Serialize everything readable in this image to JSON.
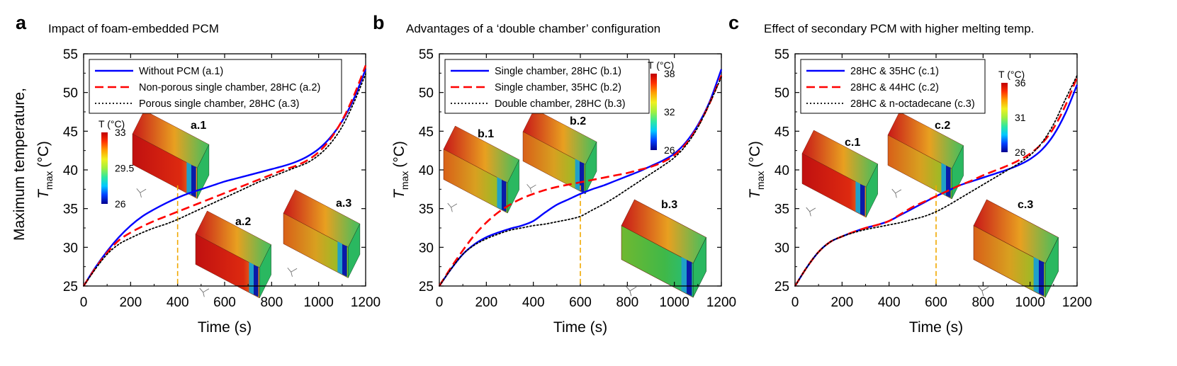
{
  "figure": {
    "ylabel_line1": "Maximum temperature,",
    "ylabel_T": "T",
    "ylabel_sub": "max",
    "ylabel_unit": "(°C)"
  },
  "chart_data": [
    {
      "type": "line",
      "panel_letter": "a",
      "title": "Impact of foam-embedded PCM",
      "xlabel": "Time (s)",
      "ylabel": "T max (°C)",
      "xlim": [
        0,
        1200
      ],
      "ylim": [
        25,
        55
      ],
      "xticks": [
        0,
        200,
        400,
        600,
        800,
        1000,
        1200
      ],
      "yticks": [
        25,
        30,
        35,
        40,
        45,
        50,
        55
      ],
      "grid": false,
      "legend_position": "top-left",
      "marker_x": 400,
      "colorbar": {
        "label": "T (°C)",
        "ticks": [
          "33",
          "29.5",
          "26"
        ],
        "position": "left-middle"
      },
      "insets": [
        "a.1",
        "a.2",
        "a.3"
      ],
      "series": [
        {
          "name": "Without PCM (a.1)",
          "color": "#0000ff",
          "dash": "solid",
          "x": [
            0,
            50,
            100,
            150,
            200,
            250,
            300,
            350,
            400,
            450,
            500,
            550,
            600,
            650,
            700,
            750,
            800,
            850,
            900,
            950,
            1000,
            1050,
            1100,
            1150,
            1200
          ],
          "y": [
            25,
            27.4,
            29.5,
            31.3,
            32.8,
            34.0,
            34.9,
            35.7,
            36.4,
            37.0,
            37.5,
            38.0,
            38.5,
            38.9,
            39.3,
            39.7,
            40.1,
            40.5,
            41.0,
            41.7,
            42.7,
            44.2,
            46.3,
            49.2,
            53.0
          ]
        },
        {
          "name": "Non-porous single chamber, 28HC (a.2)",
          "color": "#ff0000",
          "dash": "long",
          "x": [
            0,
            50,
            100,
            150,
            200,
            250,
            300,
            350,
            400,
            450,
            500,
            550,
            600,
            650,
            700,
            750,
            800,
            850,
            900,
            950,
            1000,
            1050,
            1100,
            1150,
            1200
          ],
          "y": [
            25,
            27.3,
            29.3,
            30.9,
            31.9,
            32.7,
            33.4,
            34.0,
            34.6,
            35.2,
            35.8,
            36.4,
            37.0,
            37.6,
            38.2,
            38.8,
            39.4,
            40.0,
            40.5,
            41.2,
            42.3,
            44.0,
            46.4,
            49.6,
            53.5
          ]
        },
        {
          "name": "Porous single chamber, 28HC (a.3)",
          "color": "#000000",
          "dash": "dotted",
          "x": [
            0,
            50,
            100,
            150,
            200,
            250,
            300,
            350,
            400,
            450,
            500,
            550,
            600,
            650,
            700,
            750,
            800,
            850,
            900,
            950,
            1000,
            1050,
            1100,
            1150,
            1200
          ],
          "y": [
            25,
            27.2,
            29.1,
            30.4,
            31.2,
            31.9,
            32.5,
            33.0,
            33.6,
            34.3,
            35.0,
            35.7,
            36.4,
            37.1,
            37.8,
            38.5,
            39.1,
            39.7,
            40.3,
            40.9,
            41.9,
            43.4,
            45.6,
            48.7,
            52.4
          ]
        }
      ]
    },
    {
      "type": "line",
      "panel_letter": "b",
      "title": "Advantages of a ‘double chamber’ configuration",
      "xlabel": "Time (s)",
      "ylabel": "T max (°C)",
      "xlim": [
        0,
        1200
      ],
      "ylim": [
        25,
        55
      ],
      "xticks": [
        0,
        200,
        400,
        600,
        800,
        1000,
        1200
      ],
      "yticks": [
        25,
        30,
        35,
        40,
        45,
        50,
        55
      ],
      "grid": false,
      "legend_position": "top-left",
      "marker_x": 600,
      "colorbar": {
        "label": "T (°C)",
        "ticks": [
          "38",
          "32",
          "26"
        ],
        "position": "top-right"
      },
      "insets": [
        "b.1",
        "b.2",
        "b.3"
      ],
      "series": [
        {
          "name": "Single chamber, 28HC (b.1)",
          "color": "#0000ff",
          "dash": "solid",
          "x": [
            0,
            50,
            100,
            150,
            200,
            250,
            300,
            350,
            400,
            450,
            500,
            550,
            600,
            650,
            700,
            750,
            800,
            850,
            900,
            950,
            1000,
            1050,
            1100,
            1150,
            1200
          ],
          "y": [
            25,
            27.2,
            29.1,
            30.4,
            31.3,
            31.9,
            32.4,
            32.8,
            33.4,
            34.5,
            35.5,
            36.2,
            36.9,
            37.5,
            38.0,
            38.6,
            39.2,
            39.8,
            40.5,
            41.2,
            42.1,
            43.6,
            45.8,
            48.8,
            53.0
          ]
        },
        {
          "name": "Single chamber, 35HC (b.2)",
          "color": "#ff0000",
          "dash": "long",
          "x": [
            0,
            50,
            100,
            150,
            200,
            250,
            300,
            350,
            400,
            450,
            500,
            550,
            600,
            650,
            700,
            750,
            800,
            850,
            900,
            950,
            1000,
            1050,
            1100,
            1150,
            1200
          ],
          "y": [
            25,
            27.4,
            29.6,
            31.6,
            33.2,
            34.5,
            35.5,
            36.3,
            36.9,
            37.4,
            37.8,
            38.1,
            38.4,
            38.7,
            39.0,
            39.3,
            39.6,
            40.0,
            40.4,
            41.0,
            41.9,
            43.4,
            45.6,
            48.6,
            52.2
          ]
        },
        {
          "name": "Double chamber, 28HC (b.3)",
          "color": "#000000",
          "dash": "dotted",
          "x": [
            0,
            50,
            100,
            150,
            200,
            250,
            300,
            350,
            400,
            450,
            500,
            550,
            600,
            650,
            700,
            750,
            800,
            850,
            900,
            950,
            1000,
            1050,
            1100,
            1150,
            1200
          ],
          "y": [
            25,
            27.2,
            29.1,
            30.3,
            31.1,
            31.7,
            32.2,
            32.5,
            32.8,
            33.0,
            33.3,
            33.6,
            34.0,
            34.8,
            35.6,
            36.5,
            37.5,
            38.5,
            39.5,
            40.5,
            41.6,
            43.2,
            45.5,
            48.6,
            52.0
          ]
        }
      ]
    },
    {
      "type": "line",
      "panel_letter": "c",
      "title": "Effect of secondary PCM with higher melting temp.",
      "xlabel": "Time (s)",
      "ylabel": "T max (°C)",
      "xlim": [
        0,
        1200
      ],
      "ylim": [
        25,
        55
      ],
      "xticks": [
        0,
        200,
        400,
        600,
        800,
        1000,
        1200
      ],
      "yticks": [
        25,
        30,
        35,
        40,
        45,
        50,
        55
      ],
      "grid": false,
      "legend_position": "top-left",
      "marker_x": 600,
      "colorbar": {
        "label": "T (°C)",
        "ticks": [
          "36",
          "31",
          "26"
        ],
        "position": "top-right"
      },
      "insets": [
        "c.1",
        "c.2",
        "c.3"
      ],
      "series": [
        {
          "name": "28HC & 35HC (c.1)",
          "color": "#0000ff",
          "dash": "solid",
          "x": [
            0,
            50,
            100,
            150,
            200,
            250,
            300,
            350,
            400,
            450,
            500,
            550,
            600,
            650,
            700,
            750,
            800,
            850,
            900,
            950,
            1000,
            1050,
            1100,
            1150,
            1200
          ],
          "y": [
            25,
            27.4,
            29.4,
            30.7,
            31.4,
            32.0,
            32.5,
            32.9,
            33.4,
            34.2,
            35.0,
            35.8,
            36.6,
            37.3,
            38.0,
            38.5,
            39.0,
            39.5,
            40.0,
            40.6,
            41.4,
            42.6,
            44.5,
            47.3,
            51.0
          ]
        },
        {
          "name": "28HC & 44HC (c.2)",
          "color": "#ff0000",
          "dash": "long",
          "x": [
            0,
            50,
            100,
            150,
            200,
            250,
            300,
            350,
            400,
            450,
            500,
            550,
            600,
            650,
            700,
            750,
            800,
            850,
            900,
            950,
            1000,
            1050,
            1100,
            1150,
            1200
          ],
          "y": [
            25,
            27.4,
            29.4,
            30.7,
            31.4,
            32.0,
            32.5,
            32.9,
            33.4,
            34.3,
            35.2,
            35.9,
            36.6,
            37.3,
            38.0,
            38.6,
            39.3,
            39.9,
            40.5,
            41.2,
            42.1,
            43.4,
            45.4,
            48.3,
            52.0
          ]
        },
        {
          "name": "28HC & n-octadecane (c.3)",
          "color": "#000000",
          "dash": "dotted",
          "x": [
            0,
            50,
            100,
            150,
            200,
            250,
            300,
            350,
            400,
            450,
            500,
            550,
            600,
            650,
            700,
            750,
            800,
            850,
            900,
            950,
            1000,
            1050,
            1100,
            1150,
            1200
          ],
          "y": [
            25,
            27.4,
            29.4,
            30.7,
            31.4,
            31.9,
            32.3,
            32.6,
            32.9,
            33.2,
            33.6,
            34.0,
            34.6,
            35.4,
            36.3,
            37.2,
            38.1,
            39.0,
            39.9,
            40.8,
            41.9,
            43.5,
            45.9,
            49.1,
            52.2
          ]
        }
      ]
    }
  ]
}
